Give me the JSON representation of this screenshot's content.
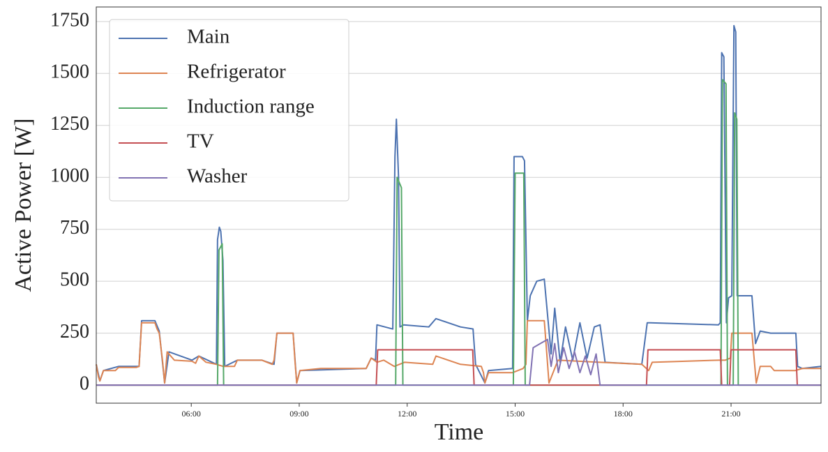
{
  "chart_data": {
    "type": "line",
    "xlabel": "Time",
    "ylabel": "Active Power [W]",
    "xlim": [
      3.36,
      23.5
    ],
    "ylim": [
      -87,
      1820
    ],
    "xticks": [
      {
        "value": 6,
        "label": "06:00"
      },
      {
        "value": 9,
        "label": "09:00"
      },
      {
        "value": 12,
        "label": "12:00"
      },
      {
        "value": 15,
        "label": "15:00"
      },
      {
        "value": 18,
        "label": "18:00"
      },
      {
        "value": 21,
        "label": "21:00"
      }
    ],
    "yticks": [
      0,
      250,
      500,
      750,
      1000,
      1250,
      1500,
      1750
    ],
    "grid": true,
    "legend": "upper left",
    "series": [
      {
        "name": "Main",
        "color": "#4c72b0",
        "x": [
          3.36,
          3.46,
          3.56,
          3.98,
          4.55,
          4.62,
          4.99,
          5.11,
          5.26,
          5.38,
          6.02,
          6.21,
          6.7,
          6.73,
          6.78,
          6.82,
          6.88,
          6.93,
          7.28,
          7.96,
          8.3,
          8.38,
          8.83,
          8.93,
          9.02,
          10.86,
          11.0,
          11.12,
          11.16,
          11.6,
          11.66,
          11.7,
          11.76,
          11.8,
          11.9,
          12.6,
          12.8,
          13.48,
          13.83,
          13.9,
          14.16,
          14.26,
          14.93,
          14.97,
          15.2,
          15.26,
          15.34,
          15.42,
          15.6,
          15.81,
          16.0,
          16.1,
          16.25,
          16.4,
          16.6,
          16.8,
          17.0,
          17.2,
          17.36,
          17.5,
          18.52,
          18.67,
          18.75,
          20.65,
          20.7,
          20.74,
          20.8,
          20.87,
          20.93,
          21.02,
          21.08,
          21.13,
          21.17,
          21.25,
          21.58,
          21.68,
          21.81,
          22.1,
          22.8,
          22.85,
          22.98,
          23.5
        ],
        "values": [
          100,
          20,
          70,
          90,
          90,
          310,
          310,
          260,
          10,
          160,
          120,
          140,
          100,
          700,
          760,
          740,
          600,
          90,
          120,
          120,
          100,
          250,
          250,
          10,
          70,
          80,
          130,
          120,
          290,
          270,
          1100,
          1280,
          1000,
          280,
          290,
          280,
          320,
          280,
          270,
          100,
          10,
          70,
          80,
          1100,
          1100,
          1080,
          310,
          430,
          500,
          510,
          150,
          370,
          110,
          280,
          120,
          300,
          130,
          280,
          290,
          110,
          100,
          300,
          300,
          290,
          300,
          1600,
          1580,
          300,
          420,
          430,
          1730,
          1700,
          430,
          430,
          430,
          200,
          260,
          250,
          250,
          90,
          80,
          90
        ]
      },
      {
        "name": "Refrigerator",
        "color": "#dd8452",
        "x": [
          3.36,
          3.42,
          3.46,
          3.56,
          3.89,
          3.98,
          4.47,
          4.55,
          4.62,
          4.99,
          5.05,
          5.11,
          5.2,
          5.26,
          5.33,
          5.38,
          5.53,
          6.02,
          6.12,
          6.21,
          6.41,
          6.7,
          6.89,
          7.2,
          7.28,
          7.96,
          8.25,
          8.3,
          8.38,
          8.83,
          8.88,
          8.93,
          9.02,
          9.6,
          10.86,
          11.0,
          11.16,
          11.35,
          11.64,
          11.93,
          12.71,
          12.8,
          13.48,
          14.06,
          14.12,
          14.16,
          14.26,
          14.93,
          15.22,
          15.3,
          15.34,
          15.81,
          15.88,
          15.94,
          16.19,
          17.36,
          18.52,
          18.71,
          18.81,
          20.65,
          20.84,
          20.98,
          21.02,
          21.58,
          21.64,
          21.7,
          21.81,
          22.1,
          22.2,
          22.78,
          22.98,
          23.5
        ],
        "values": [
          100,
          40,
          20,
          70,
          70,
          85,
          85,
          90,
          300,
          300,
          270,
          250,
          120,
          10,
          160,
          150,
          120,
          115,
          105,
          140,
          110,
          100,
          90,
          90,
          120,
          120,
          100,
          120,
          250,
          250,
          120,
          10,
          70,
          80,
          80,
          130,
          110,
          120,
          90,
          110,
          100,
          140,
          100,
          90,
          60,
          10,
          60,
          60,
          80,
          100,
          310,
          310,
          150,
          10,
          120,
          110,
          100,
          70,
          110,
          120,
          120,
          130,
          250,
          250,
          130,
          10,
          90,
          90,
          70,
          70,
          80,
          80
        ]
      },
      {
        "name": "Induction range",
        "color": "#55a868",
        "x": [
          3.36,
          6.73,
          6.77,
          6.86,
          6.9,
          11.68,
          11.72,
          11.84,
          11.88,
          14.95,
          15.0,
          15.24,
          15.28,
          20.72,
          20.76,
          20.86,
          20.9,
          21.06,
          21.1,
          21.16,
          21.2,
          23.5
        ],
        "values": [
          0,
          0,
          650,
          680,
          0,
          0,
          1000,
          950,
          0,
          0,
          1020,
          1020,
          0,
          0,
          1470,
          1450,
          0,
          0,
          1310,
          1280,
          0,
          0
        ]
      },
      {
        "name": "TV",
        "color": "#c44e52",
        "x": [
          3.36,
          11.14,
          11.18,
          13.82,
          13.86,
          18.65,
          18.69,
          20.7,
          20.74,
          20.96,
          21.0,
          22.8,
          22.84,
          23.5
        ],
        "values": [
          0,
          0,
          170,
          170,
          0,
          0,
          170,
          170,
          0,
          0,
          170,
          170,
          0,
          0
        ]
      },
      {
        "name": "Washer",
        "color": "#8172b3",
        "x": [
          3.36,
          15.4,
          15.5,
          15.7,
          15.9,
          16.0,
          16.1,
          16.2,
          16.35,
          16.5,
          16.65,
          16.8,
          16.95,
          17.1,
          17.25,
          17.36,
          17.42,
          23.5
        ],
        "values": [
          0,
          0,
          180,
          200,
          220,
          90,
          200,
          60,
          180,
          80,
          160,
          60,
          140,
          50,
          150,
          0,
          0,
          0
        ]
      }
    ]
  }
}
